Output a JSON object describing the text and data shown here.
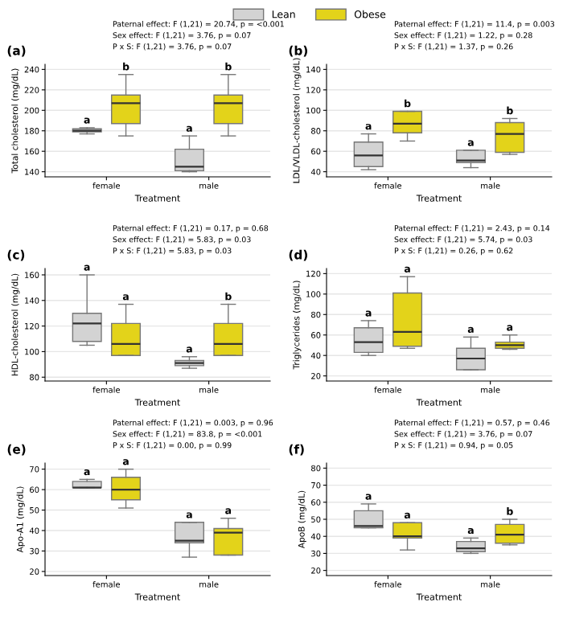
{
  "chart_data": [
    {
      "type": "box",
      "xlabel": "Treatment",
      "ylabel": "Total cholesterol (mg/dL)",
      "categories": [
        "female",
        "male"
      ],
      "ylim": [
        135,
        245
      ],
      "yticks": [
        140,
        160,
        180,
        200,
        220,
        240
      ],
      "grid": "y",
      "legend": "top",
      "annotations": [
        "(a)",
        "Paternal effect: F (1,21) = 20.74, p = <0.001",
        "Sex effect: F (1,21) = 3.76, p = 0.07",
        "P x S: F (1,21) = 3.76, p = 0.07",
        "a",
        "b",
        "a",
        "b"
      ],
      "series": [
        {
          "name": "Lean",
          "color": "#d3d3d3",
          "boxes": [
            {
              "low": 177,
              "q1": 179,
              "median": 180,
              "q3": 182,
              "high": 183
            },
            {
              "low": 140,
              "q1": 141,
              "median": 145,
              "q3": 162,
              "high": 175
            }
          ]
        },
        {
          "name": "Obese",
          "color": "#e3d31a",
          "boxes": [
            {
              "low": 175,
              "q1": 187,
              "median": 207,
              "q3": 215,
              "high": 235
            },
            {
              "low": 175,
              "q1": 187,
              "median": 207,
              "q3": 215,
              "high": 235
            }
          ]
        }
      ]
    },
    {
      "type": "box",
      "xlabel": "Treatment",
      "ylabel": "LDL/VLDL-cholesterol (mg/dL)",
      "categories": [
        "female",
        "male"
      ],
      "ylim": [
        35,
        145
      ],
      "yticks": [
        40,
        60,
        80,
        100,
        120,
        140
      ],
      "grid": "y",
      "annotations": [
        "(b)",
        "Paternal effect: F (1,21) = 11.4, p = 0.003",
        "Sex effect: F (1,21) = 1.22, p = 0.28",
        "P x S: F (1,21) = 1.37, p = 0.26",
        "a",
        "b",
        "a",
        "b"
      ],
      "series": [
        {
          "color": "#d3d3d3",
          "boxes": [
            {
              "low": 42,
              "q1": 45,
              "median": 56,
              "q3": 69,
              "high": 77
            },
            {
              "low": 44,
              "q1": 49,
              "median": 51,
              "q3": 61,
              "high": 61
            }
          ]
        },
        {
          "color": "#e3d31a",
          "boxes": [
            {
              "low": 70,
              "q1": 78,
              "median": 87,
              "q3": 99,
              "high": 99
            },
            {
              "low": 57,
              "q1": 59,
              "median": 77,
              "q3": 88,
              "high": 92
            }
          ]
        }
      ]
    },
    {
      "type": "box",
      "xlabel": "Treatment",
      "ylabel": "HDL-cholesterol (mg/dL)",
      "categories": [
        "female",
        "male"
      ],
      "ylim": [
        77,
        165
      ],
      "yticks": [
        80,
        100,
        120,
        140,
        160
      ],
      "grid": "y",
      "annotations": [
        "(c)",
        "Paternal effect: F (1,21) = 0.17, p = 0.68",
        "Sex effect: F (1,21) = 5.83, p = 0.03",
        "P x S: F (1,21) = 5.83, p = 0.03",
        "a",
        "a",
        "a",
        "b"
      ],
      "series": [
        {
          "color": "#d3d3d3",
          "boxes": [
            {
              "low": 105,
              "q1": 108,
              "median": 122,
              "q3": 130,
              "high": 160
            },
            {
              "low": 87,
              "q1": 89,
              "median": 91,
              "q3": 93,
              "high": 96
            }
          ]
        },
        {
          "color": "#e3d31a",
          "boxes": [
            {
              "low": 97,
              "q1": 97,
              "median": 106,
              "q3": 122,
              "high": 137
            },
            {
              "low": 97,
              "q1": 97,
              "median": 106,
              "q3": 122,
              "high": 137
            }
          ]
        }
      ]
    },
    {
      "type": "box",
      "xlabel": "Treatment",
      "ylabel": "Triglycerides (mg/dL)",
      "categories": [
        "female",
        "male"
      ],
      "ylim": [
        15,
        125
      ],
      "yticks": [
        20,
        40,
        60,
        80,
        100,
        120
      ],
      "grid": "y",
      "annotations": [
        "(d)",
        "Paternal effect: F (1,21) = 2.43, p = 0.14",
        "Sex effect: F (1,21) = 5.74, p = 0.03",
        "P x S: F (1,21) = 0.26, p = 0.62",
        "a",
        "a",
        "a",
        "a"
      ],
      "series": [
        {
          "color": "#d3d3d3",
          "boxes": [
            {
              "low": 40,
              "q1": 43,
              "median": 53,
              "q3": 67,
              "high": 74
            },
            {
              "low": 26,
              "q1": 26,
              "median": 37,
              "q3": 47,
              "high": 58
            }
          ]
        },
        {
          "color": "#e3d31a",
          "boxes": [
            {
              "low": 47,
              "q1": 49,
              "median": 63,
              "q3": 101,
              "high": 117
            },
            {
              "low": 46,
              "q1": 47,
              "median": 50,
              "q3": 53,
              "high": 60
            }
          ]
        }
      ]
    },
    {
      "type": "box",
      "xlabel": "Treatment",
      "ylabel": "Apo-A1 (mg/dL)",
      "categories": [
        "female",
        "male"
      ],
      "ylim": [
        18,
        73
      ],
      "yticks": [
        20,
        30,
        40,
        50,
        60,
        70
      ],
      "grid": "y",
      "annotations": [
        "(e)",
        "Paternal effect: F (1,21) = 0.003, p = 0.96",
        "Sex effect: F (1,21) = 83.8, p = <0.001",
        "P x S: F (1,21) = 0.00, p = 0.99",
        "a",
        "a",
        "a",
        "a"
      ],
      "series": [
        {
          "color": "#d3d3d3",
          "boxes": [
            {
              "low": 61,
              "q1": 61,
              "median": 61,
              "q3": 64,
              "high": 65
            },
            {
              "low": 27,
              "q1": 34,
              "median": 35,
              "q3": 44,
              "high": 44
            }
          ]
        },
        {
          "color": "#e3d31a",
          "boxes": [
            {
              "low": 51,
              "q1": 55,
              "median": 60,
              "q3": 66,
              "high": 70
            },
            {
              "low": 28,
              "q1": 28,
              "median": 39,
              "q3": 41,
              "high": 46
            }
          ]
        }
      ]
    },
    {
      "type": "box",
      "xlabel": "Treatment",
      "ylabel": "ApoB (mg/dL)",
      "categories": [
        "female",
        "male"
      ],
      "ylim": [
        17,
        83
      ],
      "yticks": [
        20,
        30,
        40,
        50,
        60,
        70,
        80
      ],
      "grid": "y",
      "annotations": [
        "(f)",
        "Paternal effect: F (1,21) = 0.57, p = 0.46",
        "Sex effect: F (1,21) = 3.76, p = 0.07",
        "P x S: F (1,21) = 0.94, p = 0.05",
        "a",
        "a",
        "a",
        "b"
      ],
      "series": [
        {
          "color": "#d3d3d3",
          "boxes": [
            {
              "low": 45,
              "q1": 45,
              "median": 46,
              "q3": 55,
              "high": 59
            },
            {
              "low": 30,
              "q1": 31,
              "median": 33,
              "q3": 37,
              "high": 39
            }
          ]
        },
        {
          "color": "#e3d31a",
          "boxes": [
            {
              "low": 32,
              "q1": 39,
              "median": 40,
              "q3": 48,
              "high": 48
            },
            {
              "low": 35,
              "q1": 36,
              "median": 41,
              "q3": 47,
              "high": 50
            }
          ]
        }
      ]
    }
  ]
}
